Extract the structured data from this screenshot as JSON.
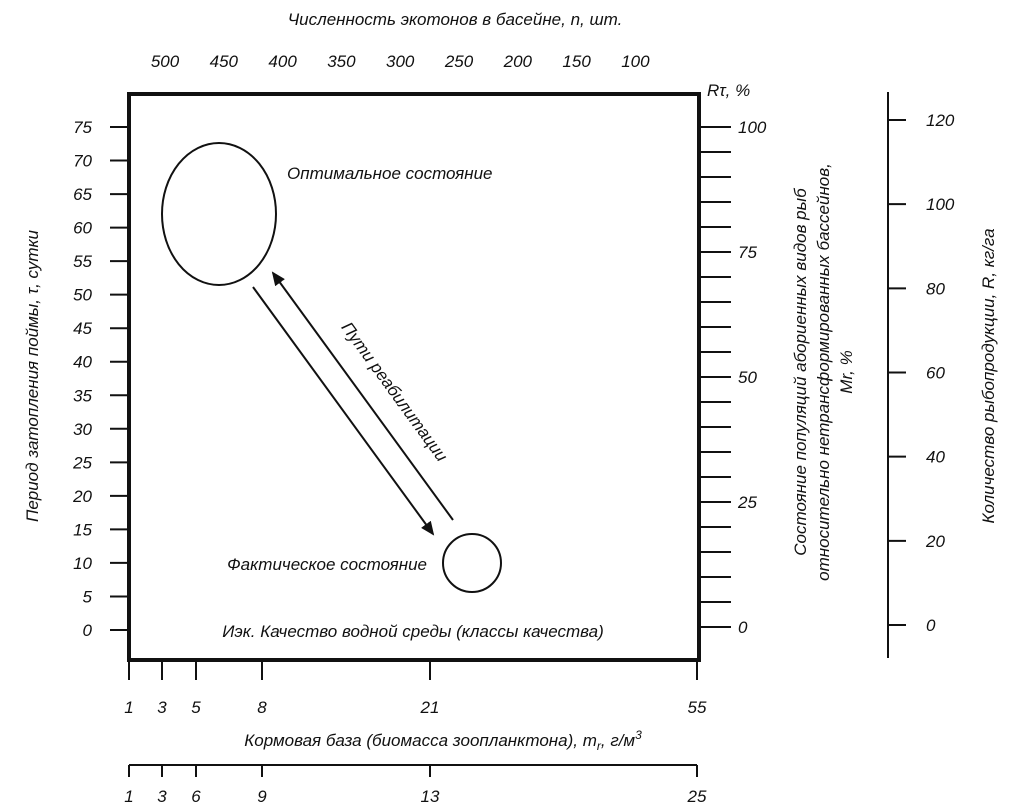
{
  "diagram": {
    "top_axis": {
      "title": "Численность экотонов в басейне, n, шт.",
      "ticks": [
        "500",
        "450",
        "400",
        "350",
        "300",
        "250",
        "200",
        "150",
        "100"
      ]
    },
    "left_axis": {
      "title": "Период затопления поймы, τ, сутки",
      "ticks": [
        "75",
        "70",
        "65",
        "60",
        "55",
        "50",
        "45",
        "40",
        "35",
        "30",
        "25",
        "20",
        "15",
        "10",
        "5",
        "0"
      ]
    },
    "right_axis_1": {
      "unit_label": "Rτ, %",
      "title_line1": "Состояние популяций абориенных видов рыб",
      "title_line2": "относительно нетрансформированных бассейнов,",
      "title_line3": "Mr, %",
      "ticks": [
        "100",
        "75",
        "50",
        "25",
        "0"
      ]
    },
    "right_axis_2": {
      "title": "Количество рыбопродукции, R, кг/га",
      "ticks": [
        "120",
        "100",
        "80",
        "60",
        "40",
        "20",
        "0"
      ]
    },
    "bottom_axis_1": {
      "ticks": [
        "1",
        "3",
        "5",
        "8",
        "21",
        "55"
      ]
    },
    "bottom_axis_2": {
      "title_main": "Кормовая база (биомасса зоопланктона), m",
      "title_sub": "r",
      "title_tail": ", г/м",
      "title_sup": "3",
      "ticks": [
        "1",
        "3",
        "6",
        "9",
        "13",
        "25"
      ]
    },
    "labels": {
      "optimal": "Оптимальное состояние",
      "actual": "Фактическое состояние",
      "paths": "Пути реабилитации",
      "water_quality": "Иэк. Качество водной среды (классы качества)"
    }
  }
}
